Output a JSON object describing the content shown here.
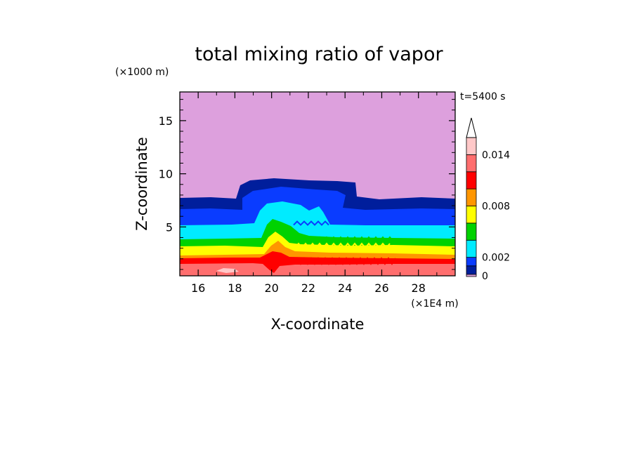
{
  "chart_data": {
    "type": "heatmap",
    "title": "total mixing ratio of vapor",
    "xlabel": "X-coordinate",
    "ylabel": "Z-coordinate",
    "x_unit": "(×1E4 m)",
    "y_unit": "(×1000 m)",
    "time_label": "t=5400 s",
    "xlim": [
      15,
      30
    ],
    "ylim": [
      0.4,
      17.7
    ],
    "x_ticks": [
      16,
      18,
      20,
      22,
      24,
      26,
      28
    ],
    "y_ticks": [
      5,
      10,
      15
    ],
    "colorbar": {
      "levels": [
        0,
        0.001,
        0.002,
        0.004,
        0.006,
        0.008,
        0.01,
        0.012,
        0.014,
        0.016
      ],
      "tick_labels": [
        {
          "value": 0,
          "label": "0"
        },
        {
          "value": 0.002,
          "label": "0.002"
        },
        {
          "value": 0.008,
          "label": "0.008"
        },
        {
          "value": 0.014,
          "label": "0.014"
        }
      ],
      "colors": [
        "#dda0dd",
        "#001e9c",
        "#0a3cff",
        "#00ebff",
        "#00d200",
        "#ffff00",
        "#ff9600",
        "#ff0000",
        "#ff6e6e",
        "#ffc8c8"
      ],
      "extend": "max"
    },
    "background_color": "#dda0dd"
  }
}
